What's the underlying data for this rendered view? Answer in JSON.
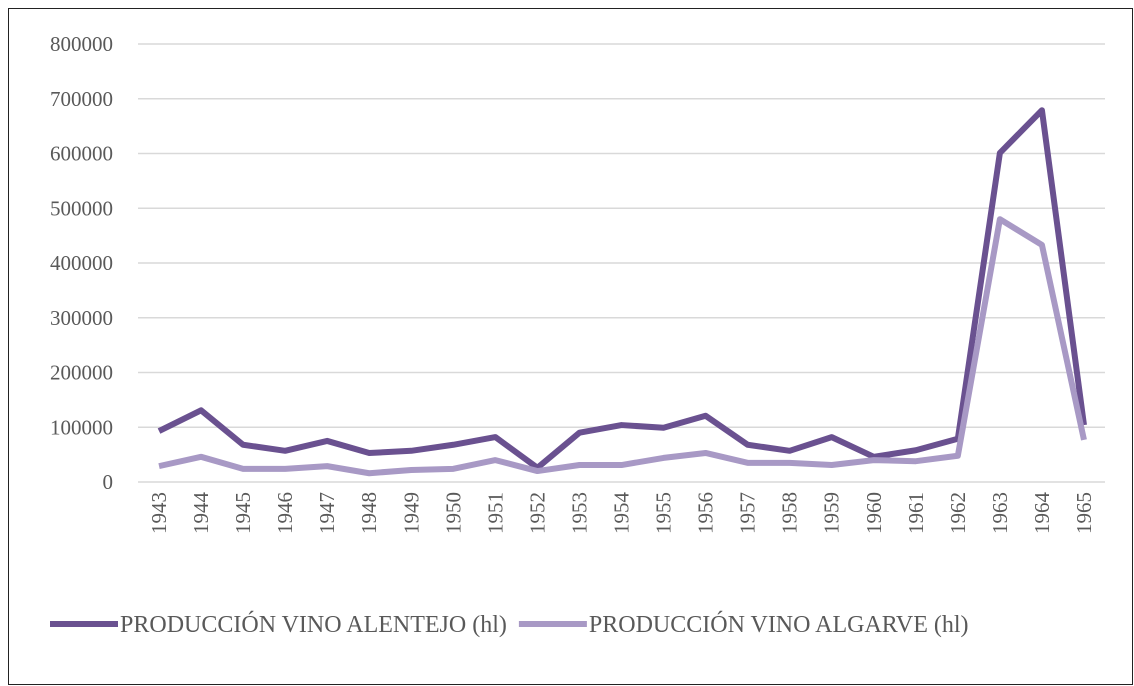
{
  "chart_data": {
    "type": "line",
    "categories": [
      "1943",
      "1944",
      "1945",
      "1946",
      "1947",
      "1948",
      "1949",
      "1950",
      "1951",
      "1952",
      "1953",
      "1954",
      "1955",
      "1956",
      "1957",
      "1958",
      "1959",
      "1960",
      "1961",
      "1962",
      "1963",
      "1964",
      "1965"
    ],
    "series": [
      {
        "name": "PRODUCCIÓN VINO ALENTEJO (hl)",
        "color": "#6a5190",
        "values": [
          93000,
          131000,
          68000,
          57000,
          75000,
          53000,
          57000,
          68000,
          82000,
          26000,
          90000,
          104000,
          99000,
          121000,
          68000,
          57000,
          82000,
          46000,
          58000,
          79000,
          601000,
          679000,
          104000
        ]
      },
      {
        "name": "PRODUCCIÓN VINO ALGARVE (hl)",
        "color": "#a899c5",
        "values": [
          29000,
          46000,
          24000,
          24000,
          29000,
          16000,
          22000,
          24000,
          40000,
          20000,
          31000,
          31000,
          44000,
          53000,
          35000,
          35000,
          31000,
          40000,
          38000,
          48000,
          480000,
          433000,
          77000
        ]
      }
    ],
    "ylim": [
      0,
      800000
    ],
    "yticks": [
      0,
      100000,
      200000,
      300000,
      400000,
      500000,
      600000,
      700000,
      800000
    ],
    "grid": true,
    "legend": "bottom"
  }
}
